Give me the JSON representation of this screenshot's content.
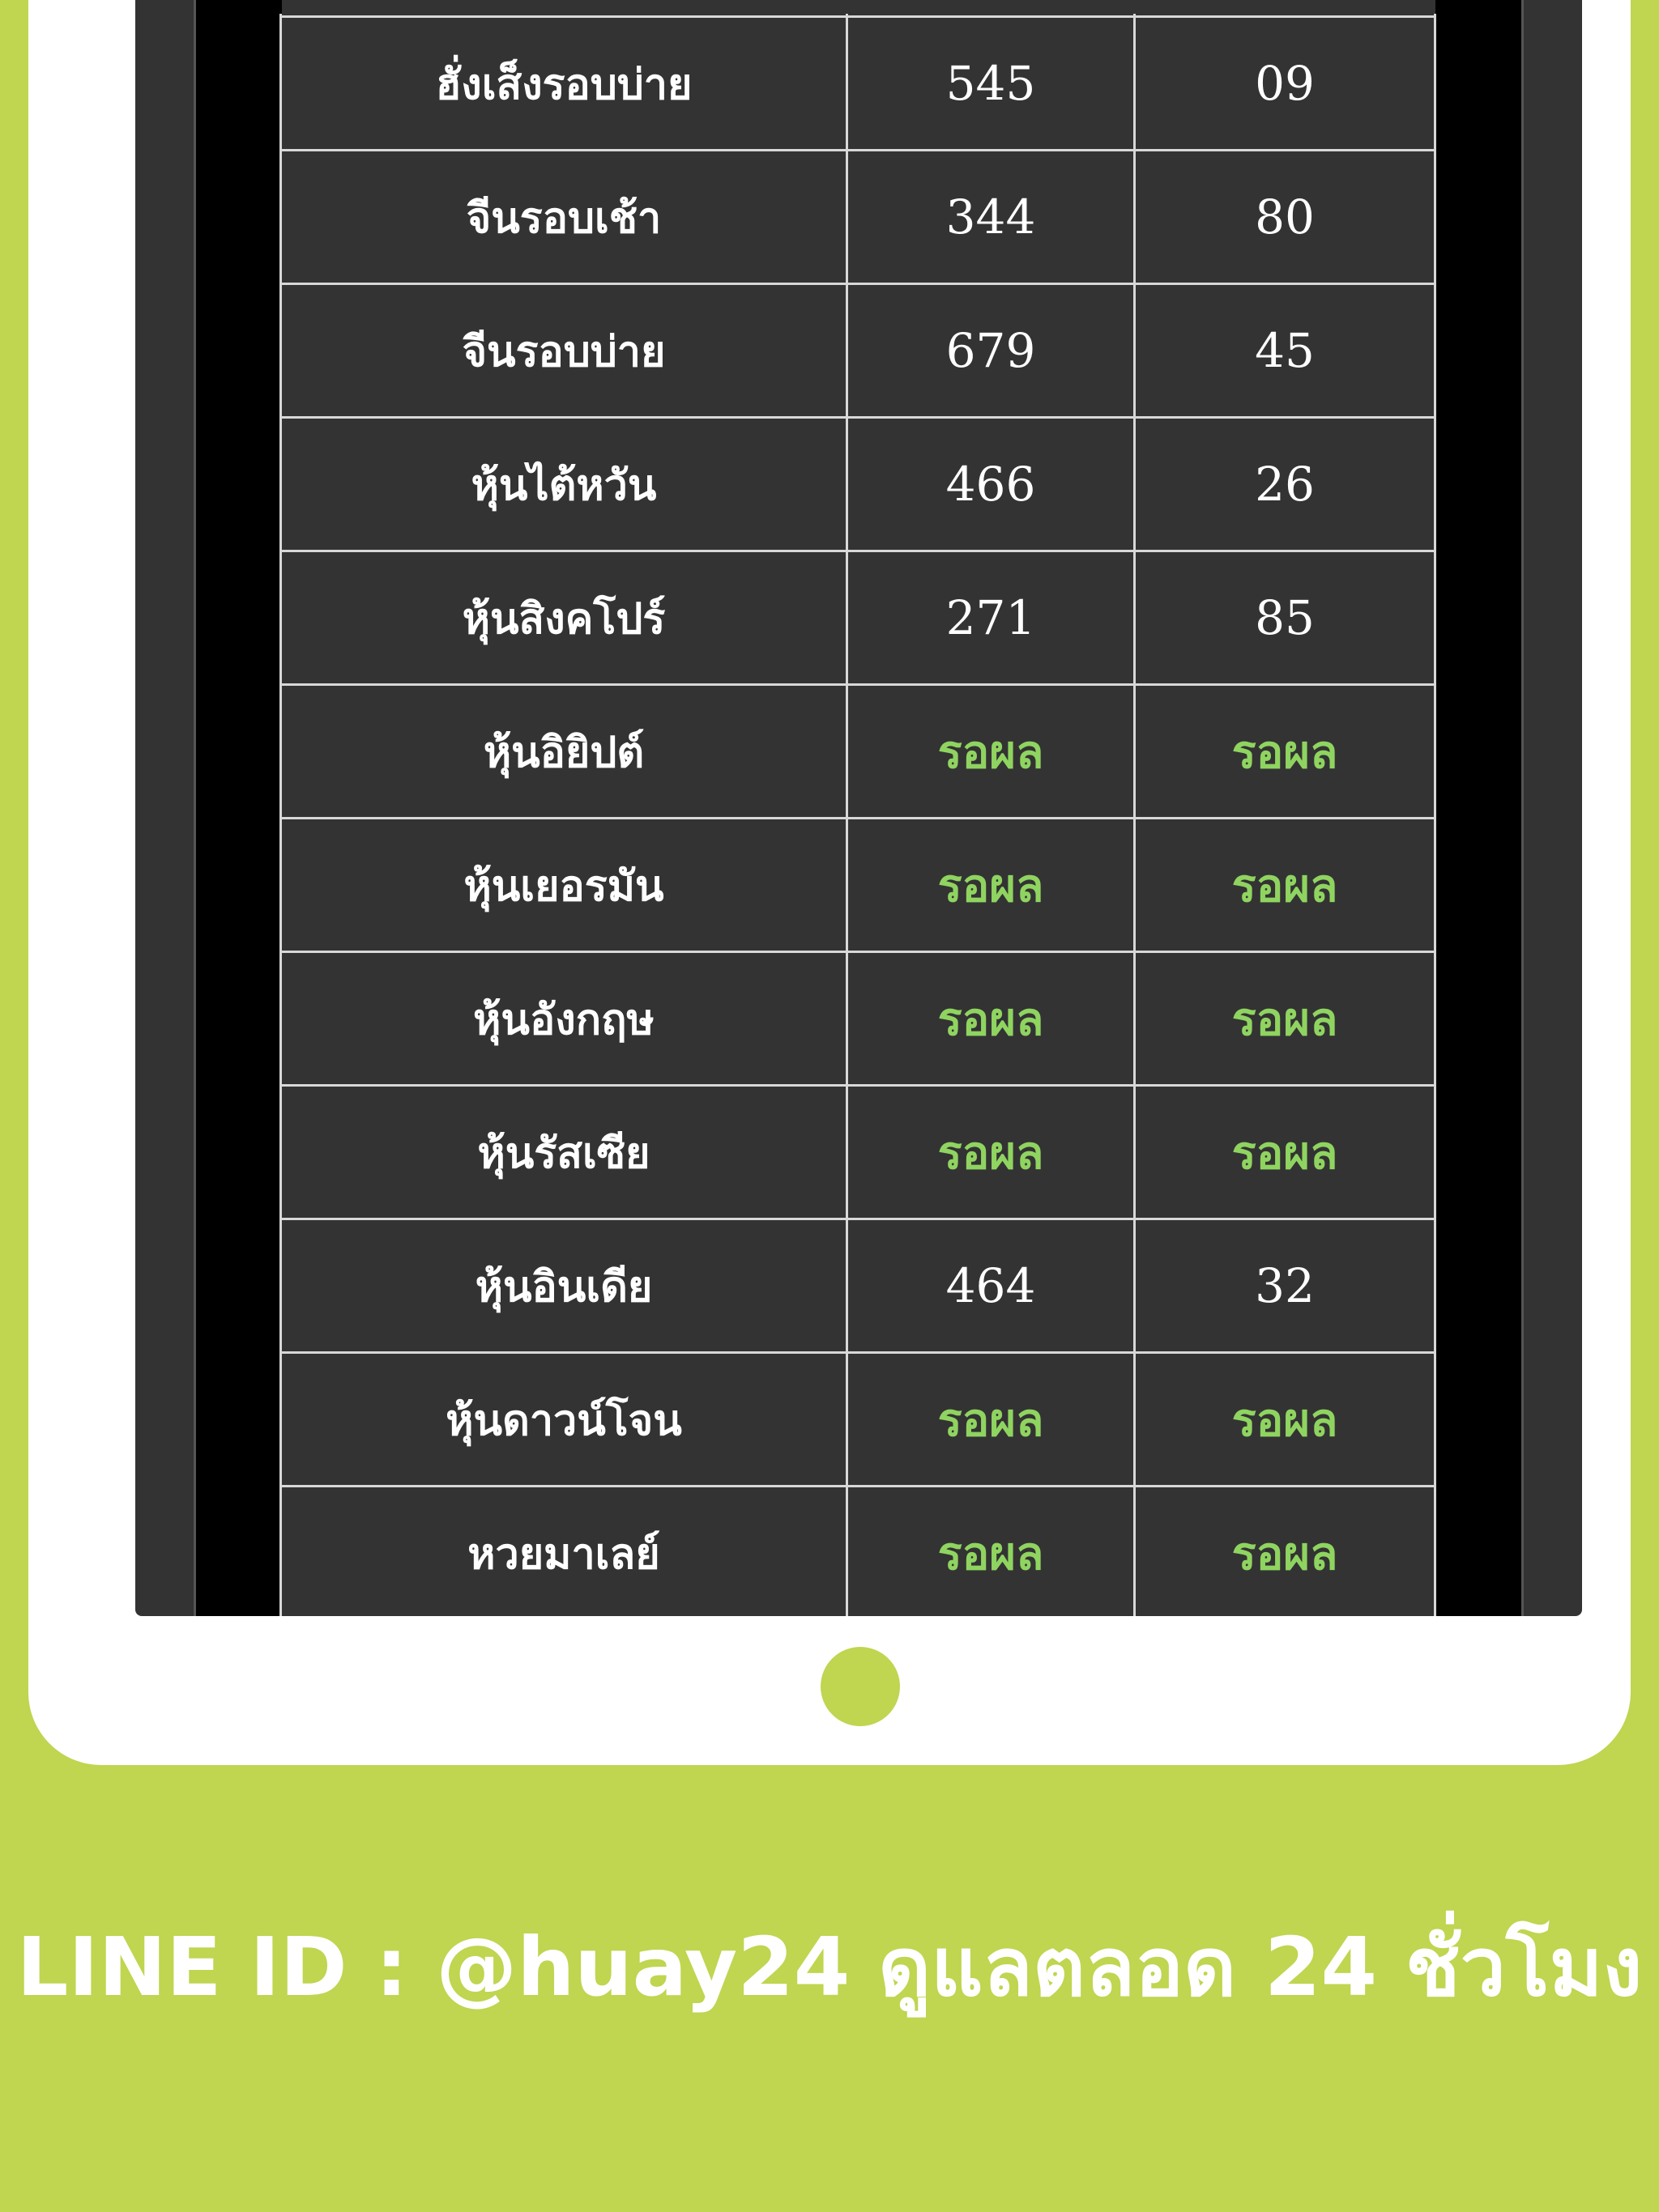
{
  "colors": {
    "background": "#c0d550",
    "frame": "#ffffff",
    "screen": "#333333",
    "pending_text": "#8fd460"
  },
  "table": {
    "rows": [
      {
        "name": "ฮั่งเส็งรอบบ่าย",
        "three_digit": "545",
        "two_digit": "09"
      },
      {
        "name": "จีนรอบเช้า",
        "three_digit": "344",
        "two_digit": "80"
      },
      {
        "name": "จีนรอบบ่าย",
        "three_digit": "679",
        "two_digit": "45"
      },
      {
        "name": "หุ้นไต้หวัน",
        "three_digit": "466",
        "two_digit": "26"
      },
      {
        "name": "หุ้นสิงคโปร์",
        "three_digit": "271",
        "two_digit": "85"
      },
      {
        "name": "หุ้นอิยิปต์",
        "three_digit": "รอผล",
        "two_digit": "รอผล"
      },
      {
        "name": "หุ้นเยอรมัน",
        "three_digit": "รอผล",
        "two_digit": "รอผล"
      },
      {
        "name": "หุ้นอังกฤษ",
        "three_digit": "รอผล",
        "two_digit": "รอผล"
      },
      {
        "name": "หุ้นรัสเซีย",
        "three_digit": "รอผล",
        "two_digit": "รอผล"
      },
      {
        "name": "หุ้นอินเดีย",
        "three_digit": "464",
        "two_digit": "32"
      },
      {
        "name": "หุ้นดาวน์โจน",
        "three_digit": "รอผล",
        "two_digit": "รอผล"
      },
      {
        "name": "หวยมาเลย์",
        "three_digit": "รอผล",
        "two_digit": "รอผล"
      }
    ]
  },
  "footer": {
    "text": "LINE ID : @huay24 ดูแลตลอด 24 ชั่วโมง"
  }
}
